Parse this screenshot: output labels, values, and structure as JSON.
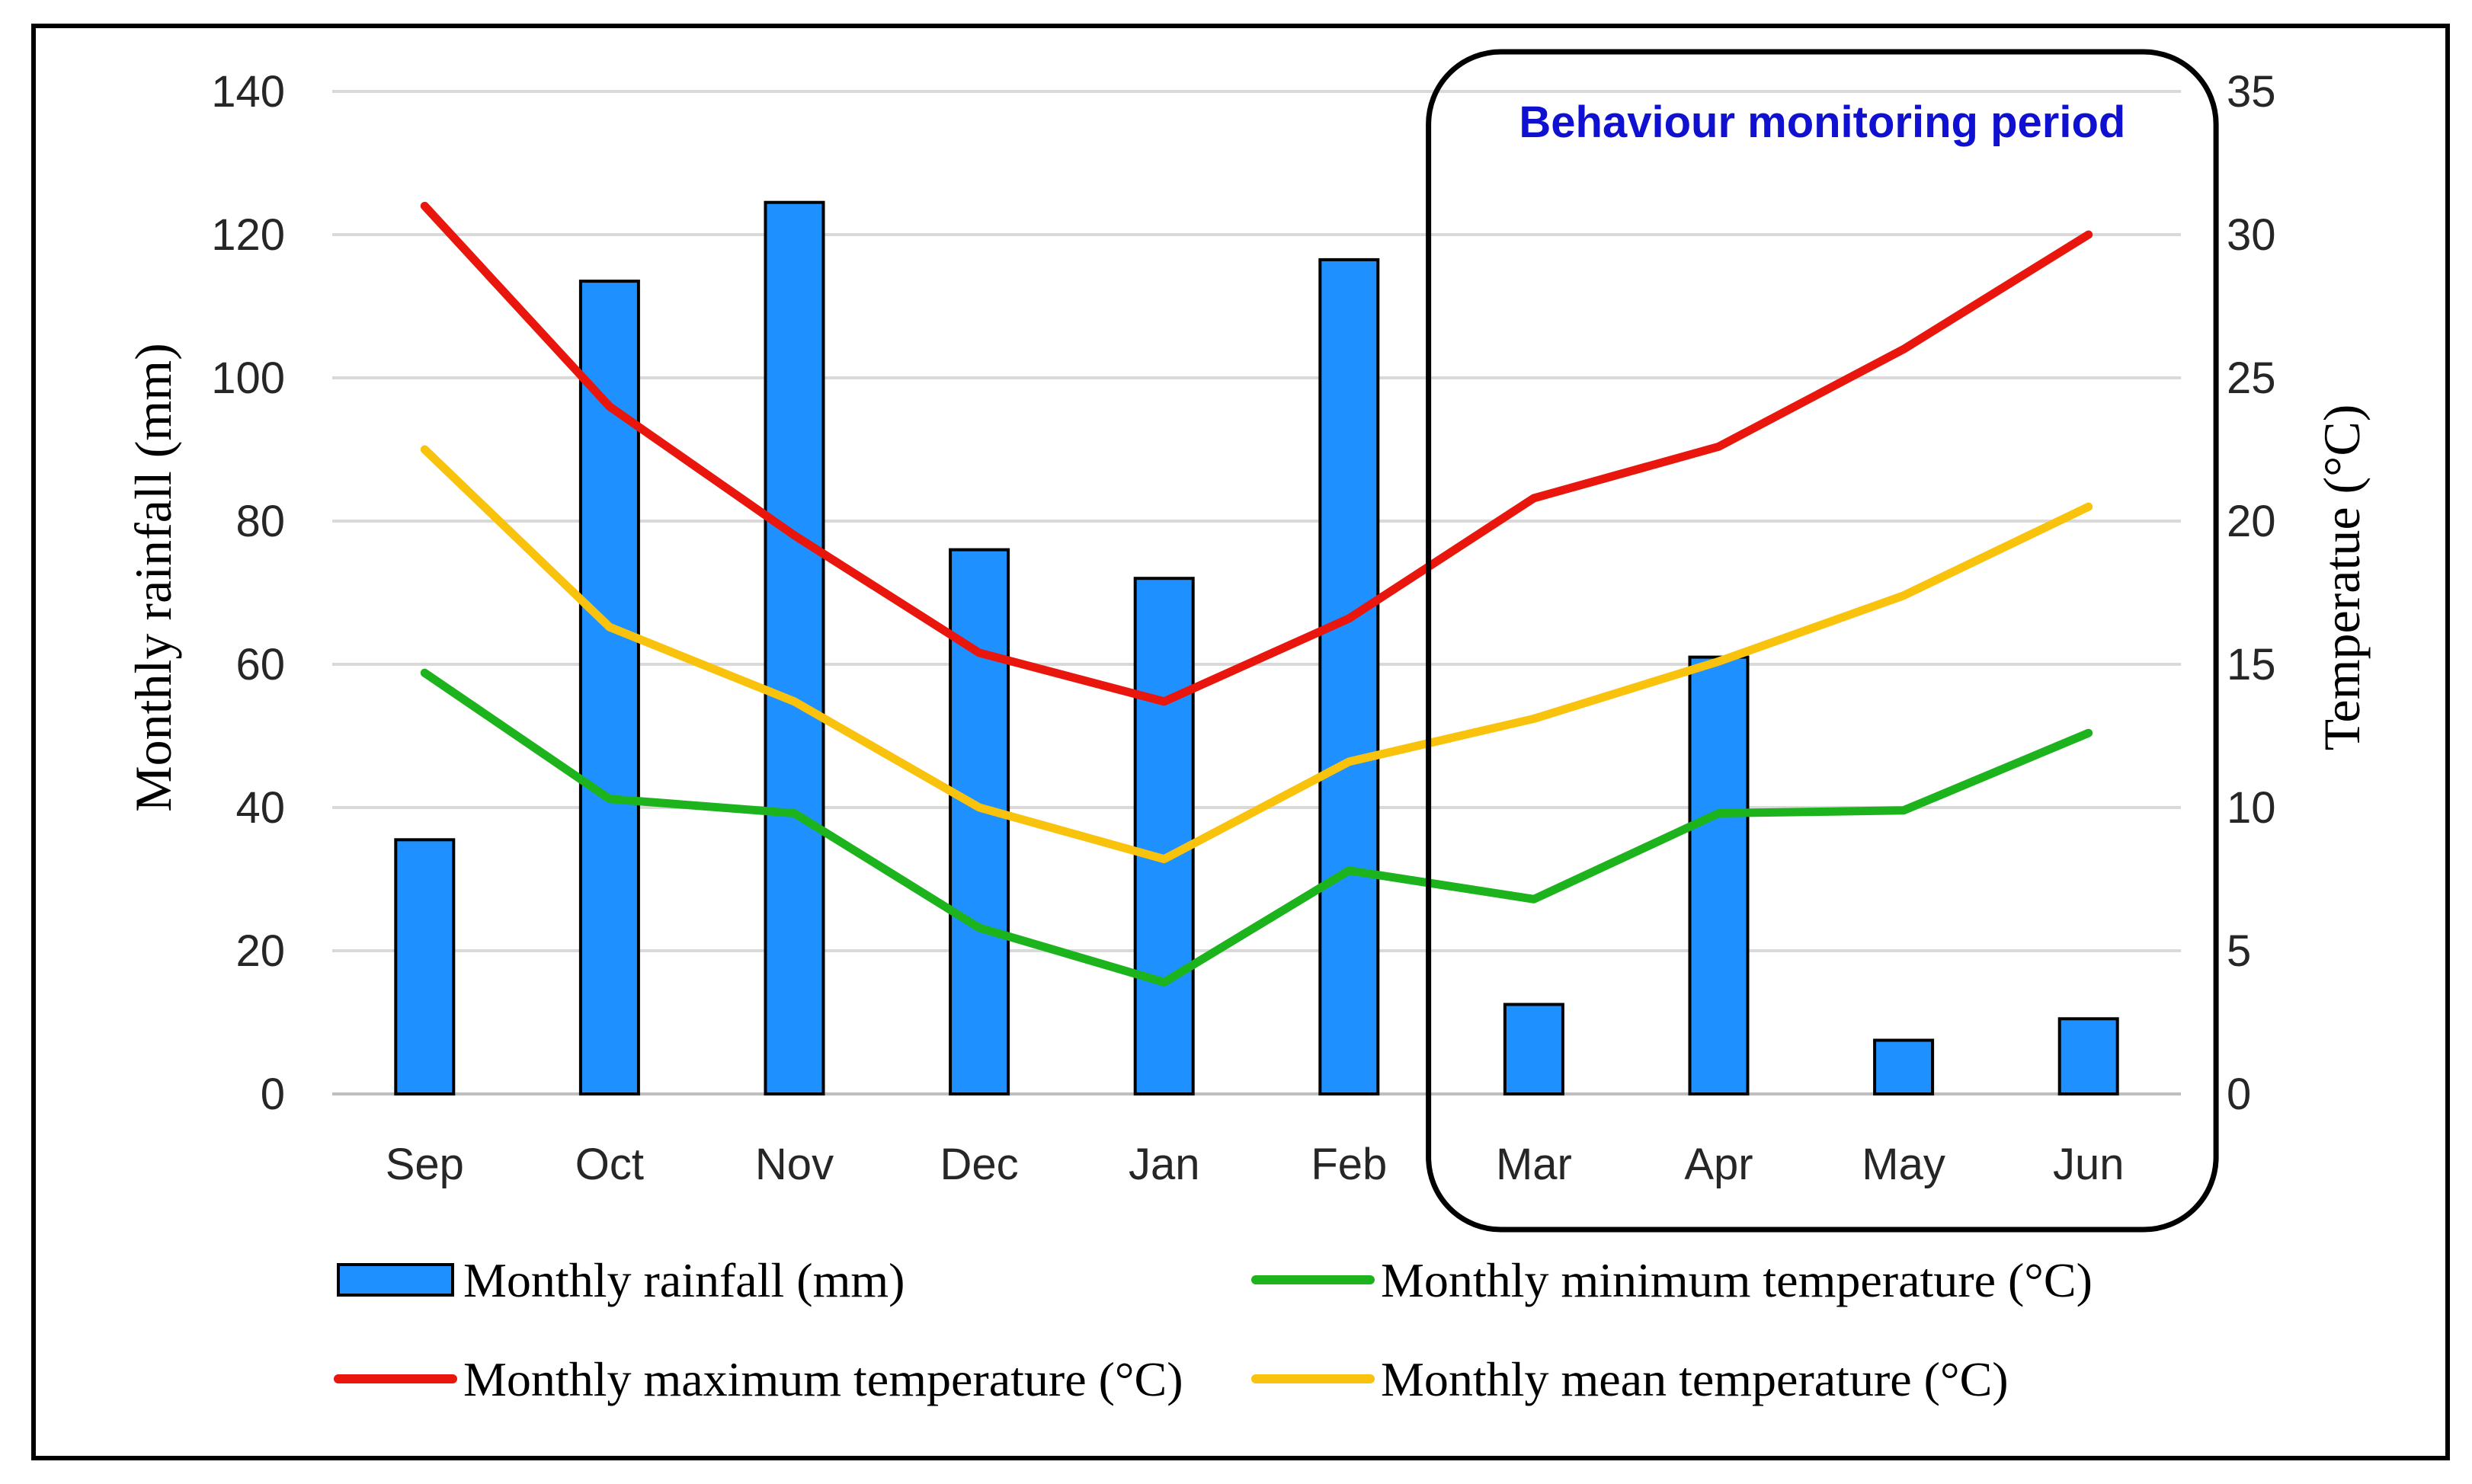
{
  "chart_data": {
    "type": "bar",
    "title": "",
    "categories": [
      "Sep",
      "Oct",
      "Nov",
      "Dec",
      "Jan",
      "Feb",
      "Mar",
      "Apr",
      "May",
      "Jun"
    ],
    "series": [
      {
        "name": "Monthly rainfall (mm)",
        "type": "bar",
        "axis": "left",
        "color": "#1E90FF",
        "values": [
          35.5,
          113.5,
          124.5,
          76,
          72,
          116.5,
          12.5,
          61,
          7.5,
          10.5
        ]
      },
      {
        "name": "Monthly minimum temperature (°C)",
        "type": "line",
        "axis": "right",
        "color": "#1DB31D",
        "values": [
          14.7,
          10.3,
          9.8,
          5.8,
          3.9,
          7.8,
          6.8,
          9.8,
          9.9,
          12.6
        ]
      },
      {
        "name": "Monthly maximum temperature (°C)",
        "type": "line",
        "axis": "right",
        "color": "#E8160C",
        "values": [
          31.0,
          24.0,
          19.5,
          15.4,
          13.7,
          16.6,
          20.8,
          22.6,
          26.0,
          30.0
        ]
      },
      {
        "name": "Monthly mean temperature (°C)",
        "type": "line",
        "axis": "right",
        "color": "#F9C20C",
        "values": [
          22.5,
          16.3,
          13.7,
          10.0,
          8.2,
          11.6,
          13.1,
          15.1,
          17.4,
          20.5
        ]
      }
    ],
    "ylabel": "Monthly rainfall (mm)",
    "ylim": [
      0,
      140
    ],
    "yticks": [
      "0",
      "20",
      "40",
      "60",
      "80",
      "100",
      "120",
      "140"
    ],
    "ylabel_right": "Temperatue (°C)",
    "ylim_right": [
      0,
      35
    ],
    "yticks_right": [
      "0",
      "5",
      "10",
      "15",
      "20",
      "25",
      "30",
      "35"
    ],
    "grid": true,
    "legend_position": "bottom",
    "annotation": {
      "text": "Behaviour monitoring period",
      "color": "#1010D0",
      "start_category": "Mar",
      "end_category": "Jun"
    }
  }
}
